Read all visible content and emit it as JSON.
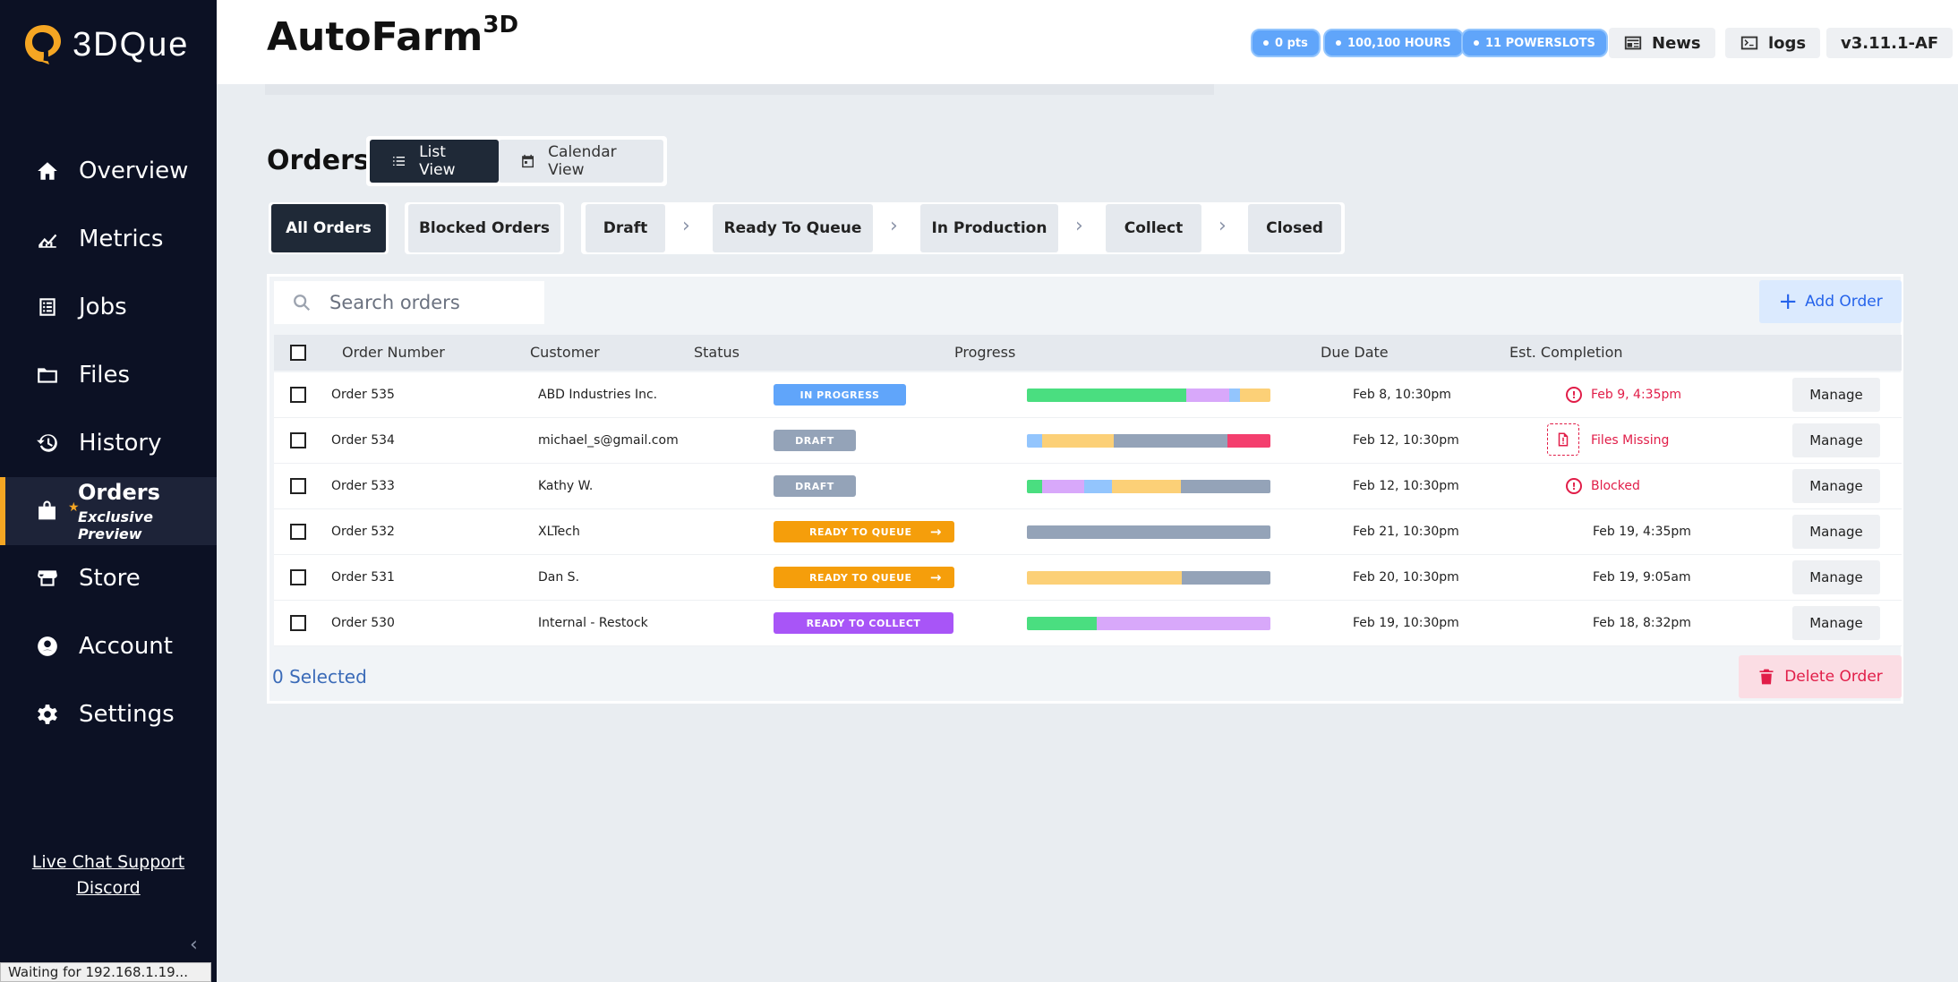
{
  "sidebar": {
    "logo_text": "3DQue",
    "items": [
      {
        "label": "Overview"
      },
      {
        "label": "Metrics"
      },
      {
        "label": "Jobs"
      },
      {
        "label": "Files"
      },
      {
        "label": "History"
      },
      {
        "label": "Orders",
        "sub": "Exclusive Preview"
      },
      {
        "label": "Store"
      },
      {
        "label": "Account"
      },
      {
        "label": "Settings"
      }
    ],
    "live_chat": "Live Chat Support",
    "discord": "Discord",
    "collapse_glyph": "‹"
  },
  "statusbar": "Waiting for 192.168.1.19...",
  "header": {
    "title": "AutoFarm",
    "title_sup": "3D",
    "pill_pts": "0 pts",
    "pill_hours": "100,100 HOURS",
    "pill_slots": "11 POWERSLOTS",
    "news": "News",
    "logs": "logs",
    "version": "v3.11.1-AF"
  },
  "page": {
    "title": "Orders",
    "list_view": "List View",
    "calendar_view": "Calendar View",
    "filters": {
      "all": "All Orders",
      "blocked": "Blocked Orders",
      "draft": "Draft",
      "ready": "Ready To Queue",
      "production": "In Production",
      "collect": "Collect",
      "closed": "Closed"
    },
    "search_placeholder": "Search orders",
    "add_order": "Add Order",
    "columns": {
      "order_number": "Order Number",
      "customer": "Customer",
      "status": "Status",
      "progress": "Progress",
      "due_date": "Due Date",
      "est_completion": "Est. Completion"
    },
    "manage_label": "Manage",
    "selected": "0 Selected",
    "delete_order": "Delete Order"
  },
  "colors": {
    "accent": "#f5a623",
    "in_progress": "#60a5fa",
    "draft": "#94a3b8",
    "ready_to_queue": "#f59e0b",
    "ready_to_collect": "#a855f7",
    "danger": "#e11d48"
  },
  "orders": [
    {
      "number": "Order 535",
      "customer": "ABD Industries Inc.",
      "status": "IN PROGRESS",
      "due": "Feb 8, 10:30pm",
      "est": "Feb 9, 4:35pm",
      "est_icon": "warning-icon"
    },
    {
      "number": "Order 534",
      "customer": "michael_s@gmail.com",
      "status": "DRAFT",
      "due": "Feb 12, 10:30pm",
      "est": "Files Missing",
      "est_icon": "file-missing-icon"
    },
    {
      "number": "Order 533",
      "customer": "Kathy W.",
      "status": "DRAFT",
      "due": "Feb 12, 10:30pm",
      "est": "Blocked",
      "est_icon": "warning-icon"
    },
    {
      "number": "Order 532",
      "customer": "XLTech",
      "status": "READY TO QUEUE",
      "due": "Feb 21, 10:30pm",
      "est": "Feb 19, 4:35pm"
    },
    {
      "number": "Order 531",
      "customer": "Dan S.",
      "status": "READY TO QUEUE",
      "due": "Feb 20, 10:30pm",
      "est": "Feb 19, 9:05am"
    },
    {
      "number": "Order 530",
      "customer": "Internal - Restock",
      "status": "READY TO COLLECT",
      "due": "Feb 19, 10:30pm",
      "est": "Feb 18, 8:32pm"
    }
  ]
}
